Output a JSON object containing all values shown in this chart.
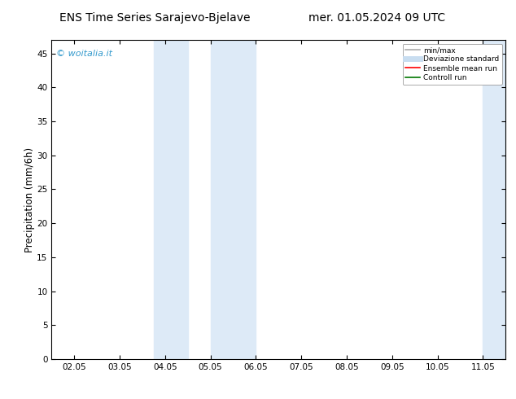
{
  "title_left": "ENS Time Series Sarajevo-Bjelave",
  "title_right": "mer. 01.05.2024 09 UTC",
  "ylabel": "Precipitation (mm/6h)",
  "xlabel_ticks": [
    "02.05",
    "03.05",
    "04.05",
    "05.05",
    "06.05",
    "07.05",
    "08.05",
    "09.05",
    "10.05",
    "11.05"
  ],
  "x_num_ticks": [
    2,
    3,
    4,
    5,
    6,
    7,
    8,
    9,
    10,
    11
  ],
  "ylim": [
    0,
    47
  ],
  "xlim": [
    1.5,
    11.5
  ],
  "yticks": [
    0,
    5,
    10,
    15,
    20,
    25,
    30,
    35,
    40,
    45
  ],
  "shaded_regions": [
    {
      "xmin": 3.75,
      "xmax": 4.5,
      "color": "#ddeaf7"
    },
    {
      "xmin": 5.0,
      "xmax": 6.0,
      "color": "#ddeaf7"
    },
    {
      "xmin": 11.0,
      "xmax": 11.5,
      "color": "#ddeaf7"
    }
  ],
  "bg_color": "#ffffff",
  "plot_bg_color": "#ffffff",
  "watermark": "© woitalia.it",
  "watermark_color": "#3399cc",
  "legend_items": [
    {
      "label": "min/max",
      "color": "#aaaaaa",
      "lw": 1.2,
      "style": "solid"
    },
    {
      "label": "Deviazione standard",
      "color": "#c8ddf0",
      "lw": 5,
      "style": "solid"
    },
    {
      "label": "Ensemble mean run",
      "color": "#ff0000",
      "lw": 1.2,
      "style": "solid"
    },
    {
      "label": "Controll run",
      "color": "#007700",
      "lw": 1.2,
      "style": "solid"
    }
  ],
  "title_fontsize": 10,
  "tick_fontsize": 7.5,
  "label_fontsize": 8.5,
  "watermark_fontsize": 8
}
